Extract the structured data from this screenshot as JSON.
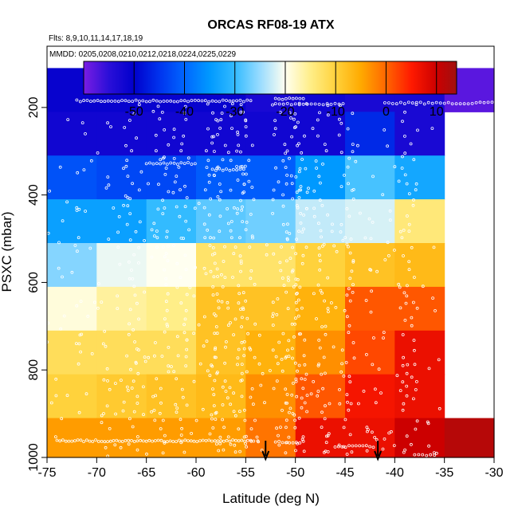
{
  "chart_data": {
    "type": "heatmap",
    "title": "ORCAS RF08-19 ATX",
    "flights_note": "Flts: 8,9,10,11,14,17,18,19",
    "dates_note": "MMDD: 0205,0208,0210,0212,0218,0224,0225,0229",
    "xlabel": "Latitude (deg N)",
    "ylabel": "PSXC (mbar)",
    "xlim": [
      -75,
      -30
    ],
    "ylim": [
      1000,
      60
    ],
    "x_ticks": [
      "-75",
      "-70",
      "-65",
      "-60",
      "-55",
      "-50",
      "-45",
      "-40",
      "-35",
      "-30"
    ],
    "y_ticks": [
      "200",
      "400",
      "600",
      "800",
      "1000"
    ],
    "colorbar": {
      "range": [
        -60,
        14
      ],
      "ticks": [
        "-50",
        "-40",
        "-30",
        "-20",
        "-10",
        "0",
        "10"
      ],
      "ticks_values": [
        -50,
        -40,
        -30,
        -20,
        -10,
        0,
        10
      ]
    },
    "cells": {
      "lat_edges": [
        -75,
        -70,
        -65,
        -60,
        -55,
        -50,
        -45,
        -40,
        -35,
        -30
      ],
      "p_edges": [
        110,
        210,
        310,
        410,
        510,
        610,
        710,
        810,
        910,
        1010
      ],
      "values": [
        [
          -51,
          -51,
          -51,
          -51,
          -53,
          -52,
          -53,
          -53,
          -58
        ],
        [
          -52,
          -52,
          -52,
          -52,
          -52,
          -52,
          -46,
          -53,
          null
        ],
        [
          -42,
          -43,
          -43,
          -41,
          -41,
          -35,
          -29,
          -33,
          null
        ],
        [
          -34,
          -34,
          -30,
          -28,
          -27,
          -23,
          -22,
          -14,
          null
        ],
        [
          -26,
          -21,
          -20,
          -13,
          -13,
          -10,
          -8,
          -7,
          null
        ],
        [
          -19,
          -16,
          -15,
          -8,
          -8,
          -6,
          1,
          1,
          null
        ],
        [
          -12,
          -12,
          -12,
          -8,
          -6,
          -3,
          2,
          7,
          null
        ],
        [
          -10,
          -9,
          -8,
          -7,
          -3,
          1,
          6,
          7,
          null
        ],
        [
          -4,
          -4,
          -4,
          -4,
          -1,
          7,
          7,
          10,
          12
        ]
      ]
    },
    "arrows_lat": [
      -53,
      -41.7
    ]
  }
}
